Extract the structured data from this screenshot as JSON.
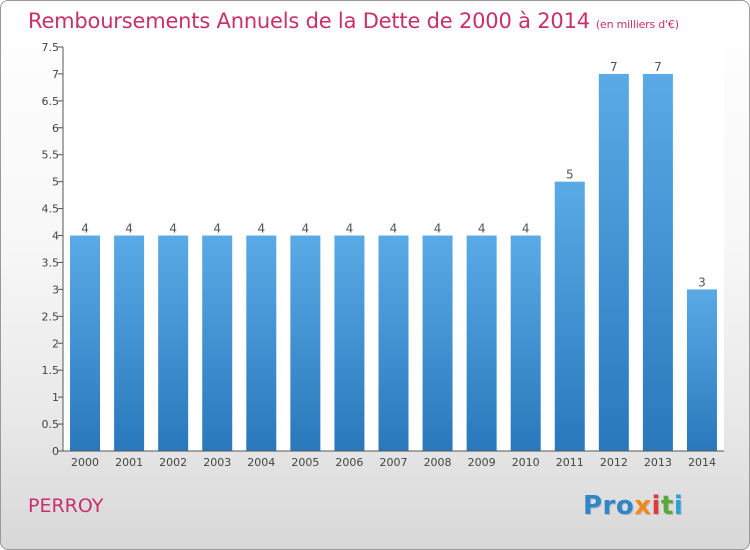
{
  "chart_data": {
    "type": "bar",
    "title": "Remboursements Annuels de la Dette de 2000 à 2014",
    "unit": "(en milliers d'€)",
    "categories": [
      "2000",
      "2001",
      "2002",
      "2003",
      "2004",
      "2005",
      "2006",
      "2007",
      "2008",
      "2009",
      "2010",
      "2011",
      "2012",
      "2013",
      "2014"
    ],
    "values": [
      4,
      4,
      4,
      4,
      4,
      4,
      4,
      4,
      4,
      4,
      4,
      5,
      7,
      7,
      3
    ],
    "data_labels": [
      "4",
      "4",
      "4",
      "4",
      "4",
      "4",
      "4",
      "4",
      "4",
      "4",
      "4",
      "5",
      "7",
      "7",
      "3"
    ],
    "ylim": [
      0,
      7.5
    ],
    "yticks": [
      "0",
      "0.5",
      "1",
      "1.5",
      "2",
      "2.5",
      "3",
      "3.5",
      "4",
      "4.5",
      "5",
      "5.5",
      "6",
      "6.5",
      "7",
      "7.5"
    ],
    "grid": false,
    "colors": {
      "bar_light": "#5aaae6",
      "bar_dark": "#2a78bc",
      "title": "#c8306a"
    }
  },
  "commune": "PERROY",
  "logo": {
    "p1": "Pro",
    "p2": "x",
    "p3": "i",
    "p4": "t",
    "p5": "i"
  }
}
